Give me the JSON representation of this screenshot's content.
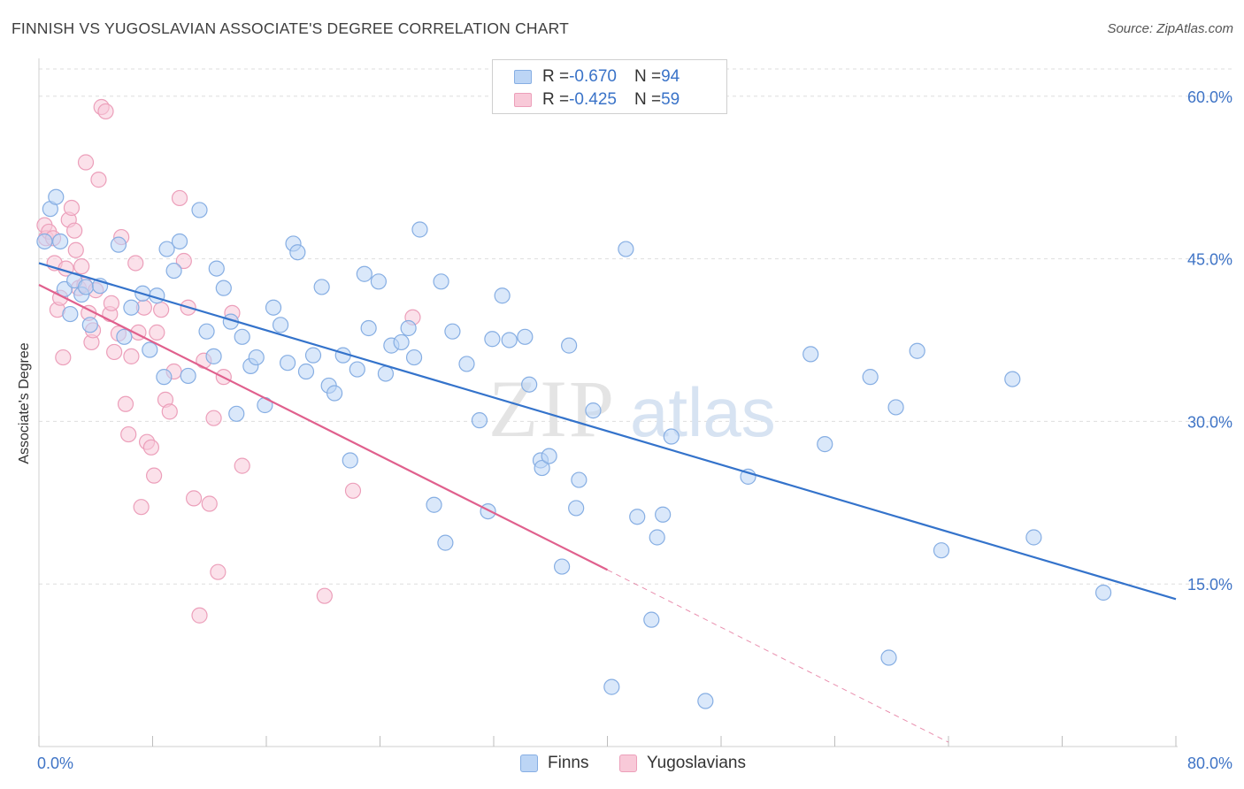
{
  "title": "FINNISH VS YUGOSLAVIAN ASSOCIATE'S DEGREE CORRELATION CHART",
  "source": "Source: ZipAtlas.com",
  "watermark": {
    "part1": "ZIP",
    "part2": "atlas"
  },
  "legend": {
    "rows": [
      {
        "r_label": "R = ",
        "r_value": "-0.670",
        "n_label": "N = ",
        "n_value": "94"
      },
      {
        "r_label": "R = ",
        "r_value": "-0.425",
        "n_label": "N = ",
        "n_value": "59"
      }
    ]
  },
  "colors": {
    "finns_fill": "#bcd5f5",
    "finns_stroke": "#86aee3",
    "finns_line": "#3473cb",
    "yugo_fill": "#f8c9d8",
    "yugo_stroke": "#ec9fba",
    "yugo_line": "#e0608d",
    "axis_text": "#3f74c6",
    "grid": "#dedede"
  },
  "chart_data": {
    "type": "scatter",
    "title": "FINNISH VS YUGOSLAVIAN ASSOCIATE'S DEGREE CORRELATION CHART",
    "xlabel": "",
    "ylabel": "Associate's Degree",
    "xlim": [
      0,
      80
    ],
    "ylim": [
      0,
      63
    ],
    "x_tick_labels": [
      {
        "value": 0,
        "label": "0.0%"
      },
      {
        "value": 80,
        "label": "80.0%"
      }
    ],
    "y_tick_labels": [
      {
        "value": 15,
        "label": "15.0%"
      },
      {
        "value": 30,
        "label": "30.0%"
      },
      {
        "value": 45,
        "label": "45.0%"
      },
      {
        "value": 60,
        "label": "60.0%"
      }
    ],
    "grid": true,
    "legend_position": "bottom",
    "series": [
      {
        "name": "Finns",
        "r": -0.67,
        "n": 94,
        "trend": {
          "x": [
            0,
            80
          ],
          "y": [
            44.6,
            13.6
          ]
        },
        "points": [
          [
            0.4,
            46.6
          ],
          [
            0.8,
            49.6
          ],
          [
            1.2,
            50.7
          ],
          [
            1.5,
            46.6
          ],
          [
            1.8,
            42.2
          ],
          [
            2.2,
            39.9
          ],
          [
            2.5,
            43.0
          ],
          [
            3.0,
            41.7
          ],
          [
            3.3,
            42.4
          ],
          [
            3.6,
            38.9
          ],
          [
            4.3,
            42.5
          ],
          [
            5.6,
            46.3
          ],
          [
            6.5,
            40.5
          ],
          [
            7.3,
            41.8
          ],
          [
            7.8,
            36.6
          ],
          [
            8.3,
            41.6
          ],
          [
            8.8,
            34.1
          ],
          [
            9.0,
            45.9
          ],
          [
            9.5,
            43.9
          ],
          [
            9.9,
            46.6
          ],
          [
            10.5,
            34.2
          ],
          [
            11.3,
            49.5
          ],
          [
            11.8,
            38.3
          ],
          [
            12.3,
            36.0
          ],
          [
            12.5,
            44.1
          ],
          [
            13.0,
            42.3
          ],
          [
            13.5,
            39.2
          ],
          [
            13.9,
            30.7
          ],
          [
            14.3,
            37.8
          ],
          [
            14.9,
            35.1
          ],
          [
            15.3,
            35.9
          ],
          [
            15.9,
            31.5
          ],
          [
            16.5,
            40.5
          ],
          [
            17.0,
            38.9
          ],
          [
            17.5,
            35.4
          ],
          [
            17.9,
            46.4
          ],
          [
            18.2,
            45.6
          ],
          [
            18.8,
            34.6
          ],
          [
            19.3,
            36.1
          ],
          [
            19.9,
            42.4
          ],
          [
            20.4,
            33.3
          ],
          [
            20.8,
            32.6
          ],
          [
            21.4,
            36.1
          ],
          [
            21.9,
            26.4
          ],
          [
            22.4,
            34.8
          ],
          [
            22.9,
            43.6
          ],
          [
            23.2,
            38.6
          ],
          [
            23.9,
            42.9
          ],
          [
            24.4,
            34.4
          ],
          [
            24.8,
            37.0
          ],
          [
            25.5,
            37.3
          ],
          [
            26.0,
            38.6
          ],
          [
            26.4,
            35.9
          ],
          [
            26.8,
            47.7
          ],
          [
            27.8,
            22.3
          ],
          [
            28.3,
            42.9
          ],
          [
            28.6,
            18.8
          ],
          [
            29.1,
            38.3
          ],
          [
            30.1,
            35.3
          ],
          [
            31.0,
            30.1
          ],
          [
            31.6,
            21.7
          ],
          [
            31.9,
            37.6
          ],
          [
            32.6,
            41.6
          ],
          [
            33.1,
            37.5
          ],
          [
            34.2,
            37.8
          ],
          [
            34.5,
            33.4
          ],
          [
            35.3,
            26.4
          ],
          [
            35.4,
            25.7
          ],
          [
            35.9,
            26.8
          ],
          [
            36.8,
            16.6
          ],
          [
            37.3,
            37.0
          ],
          [
            37.8,
            22.0
          ],
          [
            38.0,
            24.6
          ],
          [
            39.0,
            31.0
          ],
          [
            40.3,
            5.5
          ],
          [
            41.3,
            45.9
          ],
          [
            42.1,
            21.2
          ],
          [
            43.1,
            11.7
          ],
          [
            43.5,
            19.3
          ],
          [
            43.9,
            21.4
          ],
          [
            44.5,
            28.6
          ],
          [
            46.9,
            4.2
          ],
          [
            49.9,
            24.9
          ],
          [
            54.3,
            36.2
          ],
          [
            55.3,
            27.9
          ],
          [
            58.5,
            34.1
          ],
          [
            59.8,
            8.2
          ],
          [
            60.3,
            31.3
          ],
          [
            61.8,
            36.5
          ],
          [
            63.5,
            18.1
          ],
          [
            68.5,
            33.9
          ],
          [
            70.0,
            19.3
          ],
          [
            74.9,
            14.2
          ],
          [
            6.0,
            37.8
          ]
        ]
      },
      {
        "name": "Yugoslavians",
        "r": -0.425,
        "n": 59,
        "trend": {
          "x": [
            0,
            40
          ],
          "y": [
            42.6,
            16.3
          ]
        },
        "trend_dashed": {
          "x": [
            40,
            64
          ],
          "y": [
            16.3,
            0.4
          ]
        },
        "points": [
          [
            0.4,
            48.1
          ],
          [
            0.5,
            46.9
          ],
          [
            0.7,
            47.5
          ],
          [
            1.0,
            46.9
          ],
          [
            1.1,
            44.6
          ],
          [
            1.3,
            40.3
          ],
          [
            1.5,
            41.4
          ],
          [
            1.7,
            35.9
          ],
          [
            1.9,
            44.1
          ],
          [
            2.1,
            48.6
          ],
          [
            2.3,
            49.7
          ],
          [
            2.5,
            47.6
          ],
          [
            2.6,
            45.8
          ],
          [
            2.8,
            42.3
          ],
          [
            3.0,
            44.3
          ],
          [
            3.2,
            42.6
          ],
          [
            3.3,
            53.9
          ],
          [
            3.5,
            40.0
          ],
          [
            3.7,
            37.3
          ],
          [
            3.8,
            38.4
          ],
          [
            4.0,
            42.1
          ],
          [
            4.2,
            52.3
          ],
          [
            4.4,
            59.0
          ],
          [
            4.7,
            58.6
          ],
          [
            5.0,
            39.9
          ],
          [
            5.1,
            40.9
          ],
          [
            5.3,
            36.4
          ],
          [
            5.6,
            38.1
          ],
          [
            5.8,
            47.0
          ],
          [
            6.1,
            31.6
          ],
          [
            6.3,
            28.8
          ],
          [
            6.5,
            36.0
          ],
          [
            6.8,
            44.6
          ],
          [
            7.0,
            38.2
          ],
          [
            7.2,
            22.1
          ],
          [
            7.4,
            40.5
          ],
          [
            7.6,
            28.1
          ],
          [
            7.9,
            27.6
          ],
          [
            8.1,
            25.0
          ],
          [
            8.3,
            38.2
          ],
          [
            8.6,
            40.3
          ],
          [
            8.9,
            32.0
          ],
          [
            9.2,
            30.9
          ],
          [
            9.5,
            34.6
          ],
          [
            9.9,
            50.6
          ],
          [
            10.2,
            44.8
          ],
          [
            10.5,
            40.5
          ],
          [
            10.9,
            22.9
          ],
          [
            11.3,
            12.1
          ],
          [
            11.6,
            35.6
          ],
          [
            12.0,
            22.4
          ],
          [
            12.3,
            30.3
          ],
          [
            12.6,
            16.1
          ],
          [
            13.0,
            34.1
          ],
          [
            13.6,
            40.0
          ],
          [
            14.3,
            25.9
          ],
          [
            20.1,
            13.9
          ],
          [
            22.1,
            23.6
          ],
          [
            26.3,
            39.6
          ]
        ]
      }
    ]
  }
}
